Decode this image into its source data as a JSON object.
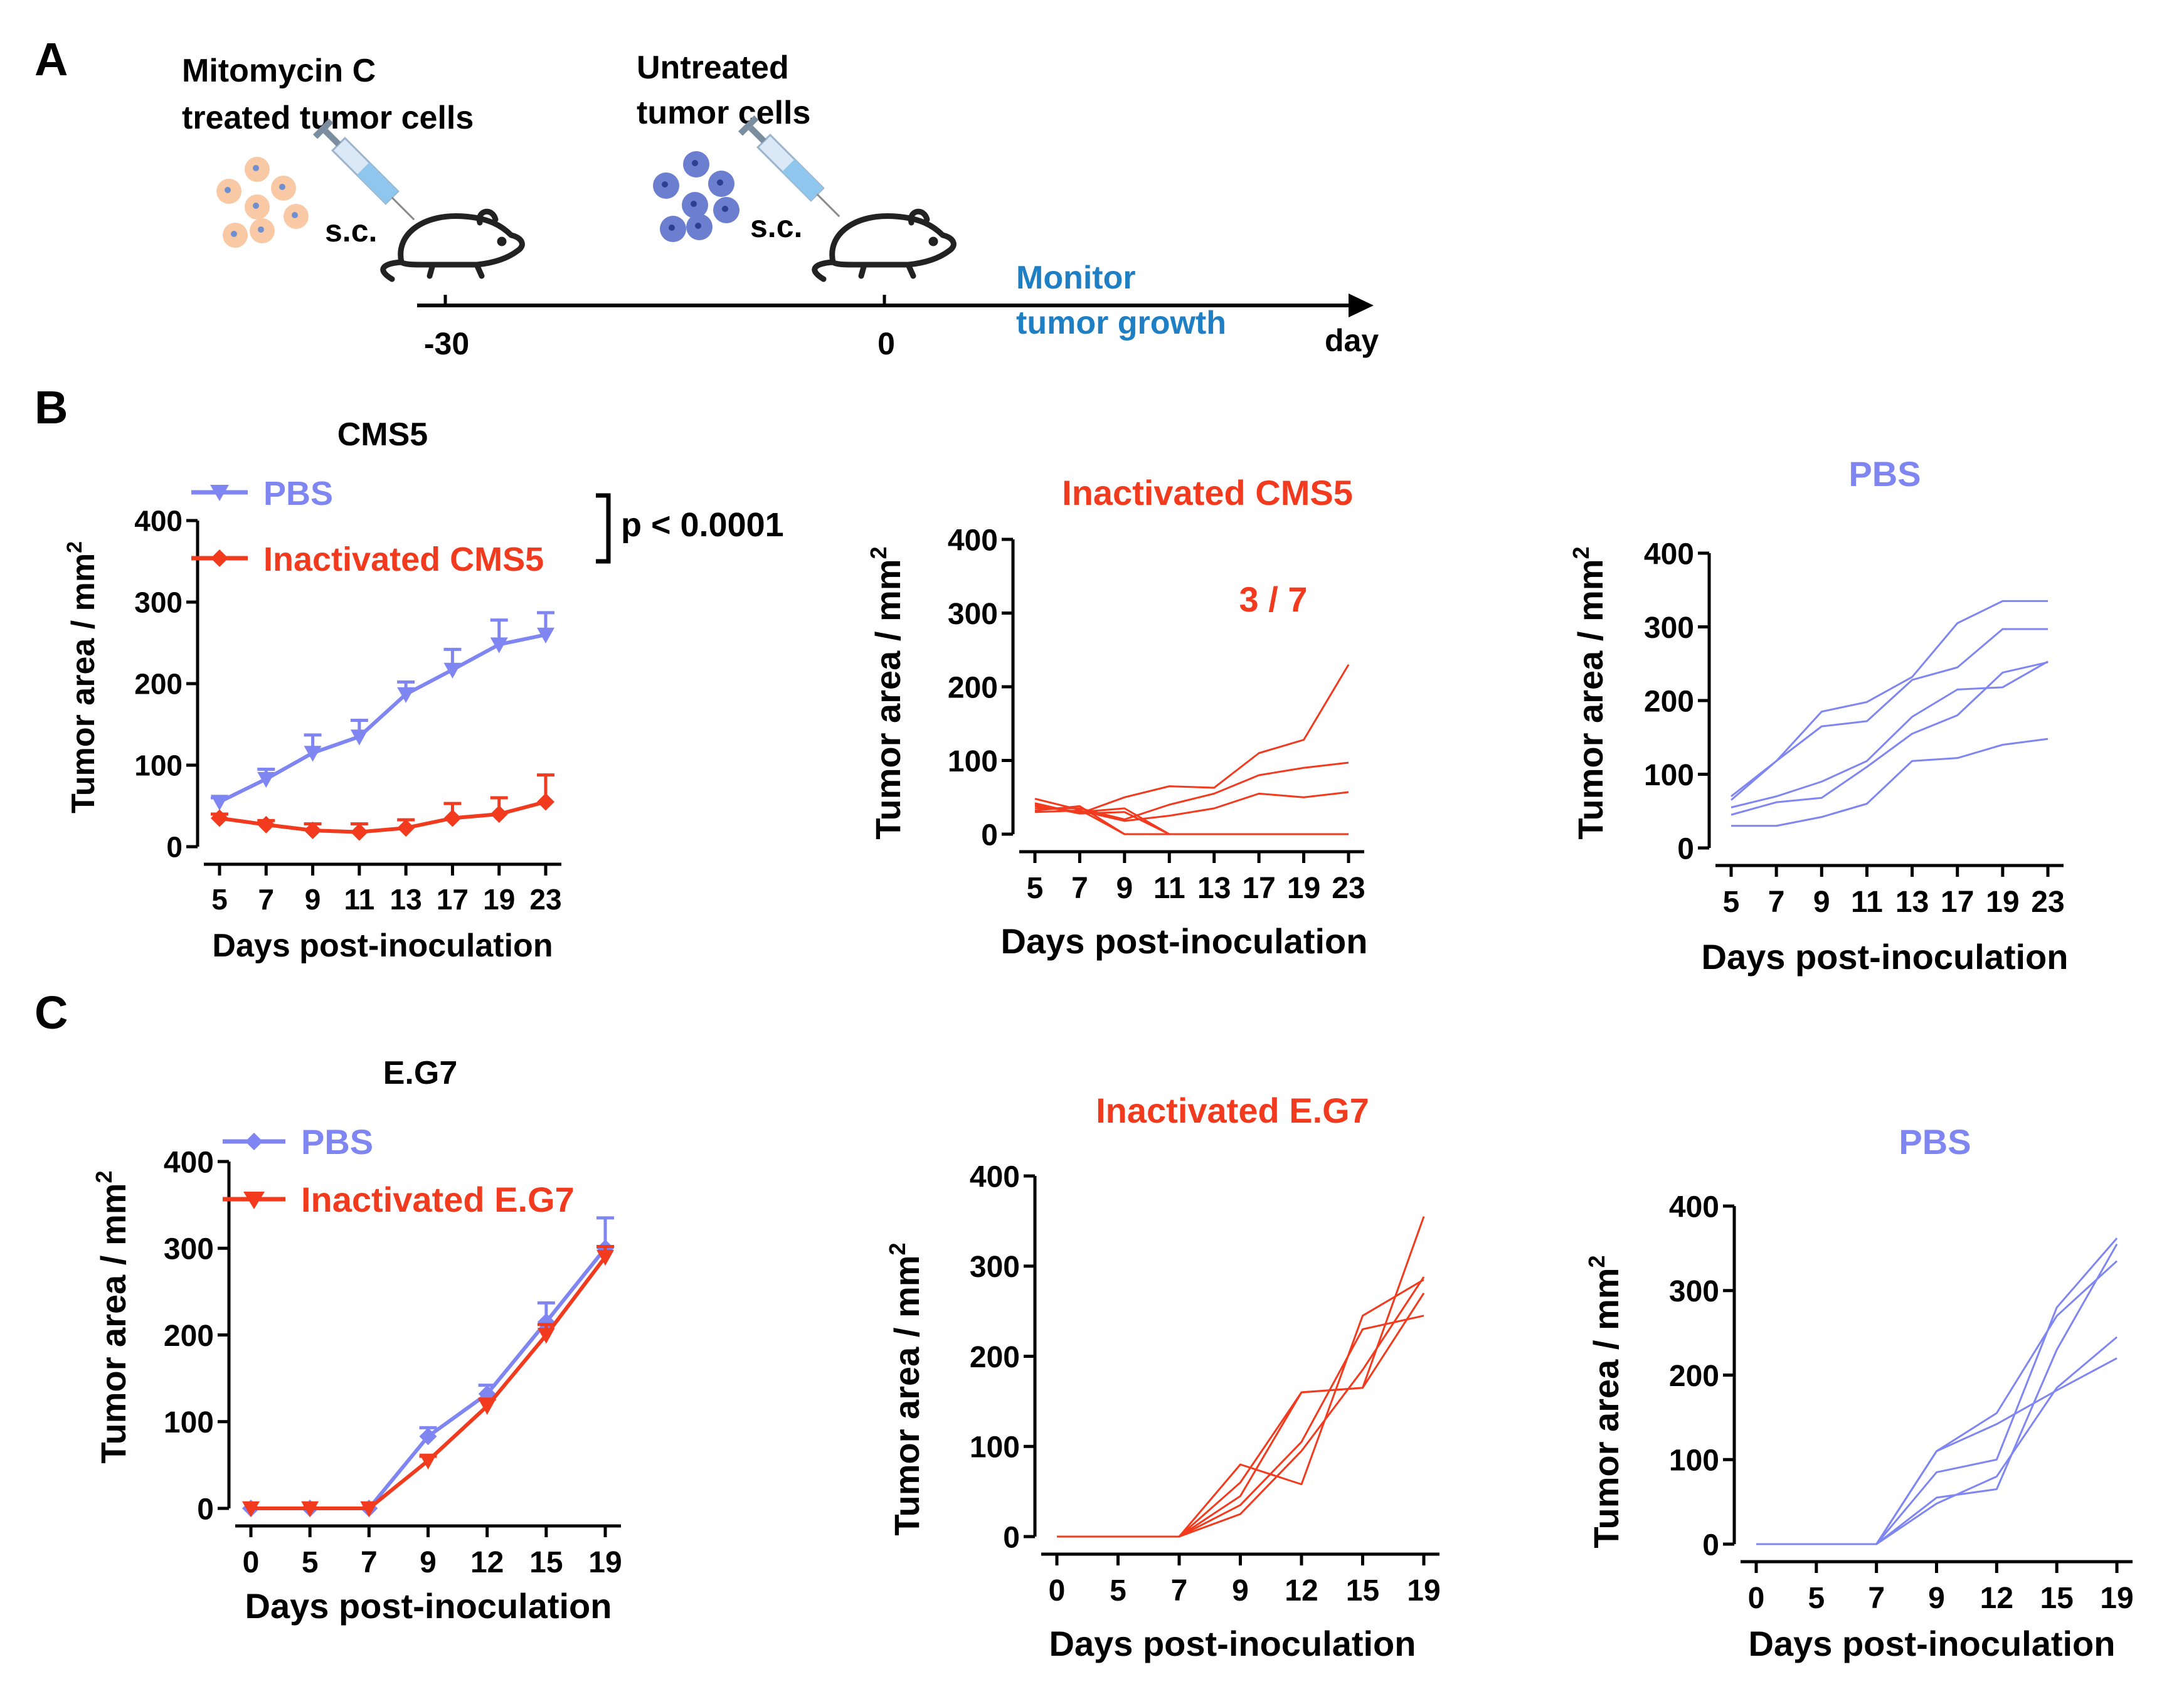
{
  "colors": {
    "pbs": "#7f86f2",
    "inactivated": "#f23a1e",
    "monitor": "#1f7fc4",
    "axis": "#000000",
    "treated_cell_fill": "#f9c9a6",
    "treated_cell_dot": "#6f8fd0",
    "untreated_cell_fill": "#6b7ecf",
    "untreated_cell_dot": "#2f3f8f"
  },
  "panels": {
    "a": "A",
    "b": "B",
    "c": "C"
  },
  "schematic": {
    "left_label_line1": "Mitomycin C",
    "left_label_line2": "treated tumor cells",
    "right_label_line1": "Untreated",
    "right_label_line2": "tumor cells",
    "route1": "s.c.",
    "route2": "s.c.",
    "tick_minus30": "-30",
    "tick_0": "0",
    "monitor_line1": "Monitor",
    "monitor_line2": "tumor growth",
    "axis_unit": "day",
    "icons": [
      "treated-cells-icon",
      "syringe-icon",
      "mouse-icon",
      "untreated-cells-icon"
    ]
  },
  "chart_data": [
    {
      "id": "b1",
      "type": "line",
      "title": "CMS5",
      "xlabel": "Days post-inoculation",
      "ylabel": "Tumor area / mm²",
      "categories": [
        "5",
        "7",
        "9",
        "11",
        "13",
        "17",
        "19",
        "23"
      ],
      "ylim": [
        0,
        400
      ],
      "yticks": [
        0,
        100,
        200,
        300,
        400
      ],
      "annotation": "p < 0.0001",
      "legend_position": "top-left",
      "series": [
        {
          "name": "PBS",
          "color": "#7f86f2",
          "marker": "triangle-down",
          "values": [
            55,
            83,
            115,
            135,
            187,
            217,
            248,
            260
          ],
          "err": [
            5,
            12,
            22,
            20,
            15,
            25,
            30,
            27
          ]
        },
        {
          "name": "Inactivated CMS5",
          "color": "#f23a1e",
          "marker": "diamond",
          "values": [
            35,
            27,
            20,
            18,
            23,
            35,
            40,
            55
          ],
          "err": [
            5,
            5,
            8,
            10,
            10,
            18,
            20,
            33
          ]
        }
      ]
    },
    {
      "id": "b2",
      "type": "line",
      "title": "Inactivated CMS5",
      "xlabel": "Days post-inoculation",
      "ylabel": "Tumor area / mm²",
      "categories": [
        "5",
        "7",
        "9",
        "11",
        "13",
        "17",
        "19",
        "23"
      ],
      "ylim": [
        0,
        400
      ],
      "yticks": [
        0,
        100,
        200,
        300,
        400
      ],
      "annotation": "3 / 7",
      "color": "#f23a1e",
      "series": [
        {
          "name": "mouse 1",
          "values": [
            48,
            33,
            0,
            0,
            0,
            0,
            0,
            0
          ]
        },
        {
          "name": "mouse 2",
          "values": [
            38,
            30,
            35,
            0,
            0,
            0,
            0,
            0
          ]
        },
        {
          "name": "mouse 3",
          "values": [
            32,
            38,
            0,
            0,
            0,
            0,
            0,
            0
          ]
        },
        {
          "name": "mouse 4",
          "values": [
            42,
            28,
            30,
            0,
            0,
            0,
            0,
            0
          ]
        },
        {
          "name": "mouse 5",
          "values": [
            40,
            28,
            50,
            65,
            63,
            110,
            128,
            230
          ]
        },
        {
          "name": "mouse 6",
          "values": [
            35,
            35,
            20,
            40,
            55,
            80,
            90,
            97
          ]
        },
        {
          "name": "mouse 7",
          "values": [
            30,
            32,
            18,
            25,
            35,
            55,
            50,
            57
          ]
        }
      ]
    },
    {
      "id": "b3",
      "type": "line",
      "title": "PBS",
      "xlabel": "Days post-inoculation",
      "ylabel": "Tumor area / mm²",
      "categories": [
        "5",
        "7",
        "9",
        "11",
        "13",
        "17",
        "19",
        "23"
      ],
      "ylim": [
        0,
        400
      ],
      "yticks": [
        0,
        100,
        200,
        300,
        400
      ],
      "color": "#7f86f2",
      "series": [
        {
          "name": "mouse 1",
          "values": [
            70,
            118,
            185,
            198,
            232,
            305,
            335,
            335
          ]
        },
        {
          "name": "mouse 2",
          "values": [
            65,
            118,
            165,
            172,
            228,
            245,
            297,
            297
          ]
        },
        {
          "name": "mouse 3",
          "values": [
            55,
            70,
            90,
            118,
            178,
            215,
            218,
            253
          ]
        },
        {
          "name": "mouse 4",
          "values": [
            45,
            62,
            68,
            110,
            155,
            180,
            238,
            252
          ]
        },
        {
          "name": "mouse 5",
          "values": [
            30,
            30,
            42,
            60,
            118,
            122,
            140,
            148
          ]
        }
      ]
    },
    {
      "id": "c1",
      "type": "line",
      "title": "E.G7",
      "xlabel": "Days post-inoculation",
      "ylabel": "Tumor area / mm²",
      "categories": [
        "0",
        "5",
        "7",
        "9",
        "12",
        "15",
        "19"
      ],
      "ylim": [
        0,
        400
      ],
      "yticks": [
        0,
        100,
        200,
        300,
        400
      ],
      "legend_position": "top-left",
      "series": [
        {
          "name": "PBS",
          "color": "#7f86f2",
          "marker": "diamond",
          "values": [
            0,
            0,
            0,
            83,
            132,
            215,
            300
          ],
          "err": [
            0,
            0,
            0,
            10,
            10,
            22,
            35
          ]
        },
        {
          "name": "Inactivated E.G7",
          "color": "#f23a1e",
          "marker": "triangle-down",
          "values": [
            0,
            0,
            0,
            55,
            118,
            200,
            290
          ],
          "err": [
            0,
            0,
            0,
            5,
            8,
            12,
            12
          ]
        }
      ]
    },
    {
      "id": "c2",
      "type": "line",
      "title": "Inactivated E.G7",
      "xlabel": "Days post-inoculation",
      "ylabel": "Tumor area / mm²",
      "categories": [
        "0",
        "5",
        "7",
        "9",
        "12",
        "15",
        "19"
      ],
      "ylim": [
        0,
        400
      ],
      "yticks": [
        0,
        100,
        200,
        300,
        400
      ],
      "color": "#f23a1e",
      "series": [
        {
          "name": "mouse 1",
          "values": [
            0,
            0,
            0,
            80,
            58,
            245,
            285
          ]
        },
        {
          "name": "mouse 2",
          "values": [
            0,
            0,
            0,
            60,
            160,
            165,
            355
          ]
        },
        {
          "name": "mouse 3",
          "values": [
            0,
            0,
            0,
            45,
            160,
            165,
            270
          ]
        },
        {
          "name": "mouse 4",
          "values": [
            0,
            0,
            0,
            35,
            105,
            230,
            245
          ]
        },
        {
          "name": "mouse 5",
          "values": [
            0,
            0,
            0,
            25,
            95,
            185,
            288
          ]
        }
      ]
    },
    {
      "id": "c3",
      "type": "line",
      "title": "PBS",
      "xlabel": "Days post-inoculation",
      "ylabel": "Tumor area / mm²",
      "categories": [
        "0",
        "5",
        "7",
        "9",
        "12",
        "15",
        "19"
      ],
      "ylim": [
        0,
        400
      ],
      "yticks": [
        0,
        100,
        200,
        300,
        400
      ],
      "color": "#7f86f2",
      "series": [
        {
          "name": "mouse 1",
          "values": [
            0,
            0,
            0,
            110,
            155,
            270,
            335
          ]
        },
        {
          "name": "mouse 2",
          "values": [
            0,
            0,
            0,
            85,
            100,
            280,
            362
          ]
        },
        {
          "name": "mouse 3",
          "values": [
            0,
            0,
            0,
            110,
            142,
            182,
            220
          ]
        },
        {
          "name": "mouse 4",
          "values": [
            0,
            0,
            0,
            55,
            65,
            230,
            355
          ]
        },
        {
          "name": "mouse 5",
          "values": [
            0,
            0,
            0,
            48,
            80,
            185,
            245
          ]
        }
      ]
    }
  ]
}
